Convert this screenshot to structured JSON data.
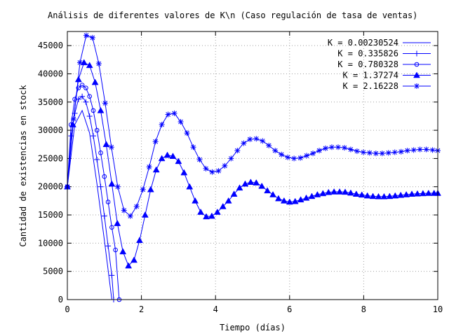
{
  "chart_data": {
    "type": "line",
    "title": "Análisis de diferentes valores de K\\n (Caso regulación de tasa de ventas)",
    "xlabel": "Tiempo (días)",
    "ylabel": "Cantidad de existencias en stock",
    "xlim": [
      0,
      10
    ],
    "ylim": [
      0,
      47500
    ],
    "xticks": [
      0,
      2,
      4,
      6,
      8,
      10
    ],
    "yticks": [
      0,
      5000,
      10000,
      15000,
      20000,
      25000,
      30000,
      35000,
      40000,
      45000
    ],
    "grid": true,
    "legend_position": "top-right",
    "line_color": "#0000ff",
    "series": [
      {
        "name": "K = 0.00230524",
        "marker": "none",
        "x": [
          0,
          0.2,
          0.4,
          0.6,
          0.8,
          1.0,
          1.2
        ],
        "y": [
          20000,
          31000,
          33500,
          29500,
          20500,
          10500,
          0
        ]
      },
      {
        "name": "K = 0.335826",
        "marker": "plus",
        "x": [
          0,
          0.1,
          0.2,
          0.3,
          0.4,
          0.5,
          0.6,
          0.7,
          0.8,
          0.9,
          1.0,
          1.1,
          1.2,
          1.25
        ],
        "y": [
          20000,
          29000,
          33000,
          35500,
          36000,
          35000,
          32500,
          29000,
          24800,
          20000,
          14800,
          9500,
          4300,
          0
        ]
      },
      {
        "name": "K = 0.780328",
        "marker": "circle",
        "x": [
          0,
          0.1,
          0.2,
          0.3,
          0.4,
          0.5,
          0.6,
          0.7,
          0.8,
          0.9,
          1.0,
          1.1,
          1.2,
          1.3,
          1.4
        ],
        "y": [
          20000,
          31000,
          35500,
          37500,
          38000,
          37500,
          36000,
          33500,
          30000,
          26000,
          21800,
          17300,
          12800,
          8800,
          0
        ]
      },
      {
        "name": "K = 1.37274",
        "marker": "triangle",
        "x": [
          0,
          0.15,
          0.3,
          0.45,
          0.6,
          0.75,
          0.9,
          1.05,
          1.2,
          1.35,
          1.5,
          1.65,
          1.8,
          1.95,
          2.1,
          2.25,
          2.4,
          2.55,
          2.7,
          2.85,
          3.0,
          3.15,
          3.3,
          3.45,
          3.6,
          3.75,
          3.9,
          4.05,
          4.2,
          4.35,
          4.5,
          4.65,
          4.8,
          4.95,
          5.1,
          5.25,
          5.4,
          5.55,
          5.7,
          5.85,
          6.0,
          6.15,
          6.3,
          6.45,
          6.6,
          6.75,
          6.9,
          7.05,
          7.2,
          7.35,
          7.5,
          7.65,
          7.8,
          7.95,
          8.1,
          8.25,
          8.4,
          8.55,
          8.7,
          8.85,
          9.0,
          9.15,
          9.3,
          9.45,
          9.6,
          9.75,
          9.9,
          10.0
        ],
        "y": [
          20000,
          31000,
          39000,
          42000,
          41500,
          38500,
          33500,
          27500,
          20500,
          13500,
          8500,
          6000,
          7000,
          10500,
          15000,
          19500,
          23000,
          25000,
          25600,
          25400,
          24500,
          22500,
          20000,
          17500,
          15500,
          14700,
          14800,
          15500,
          16500,
          17500,
          18700,
          19800,
          20500,
          20800,
          20700,
          20100,
          19300,
          18600,
          17900,
          17500,
          17300,
          17400,
          17700,
          18000,
          18300,
          18600,
          18800,
          19000,
          19100,
          19100,
          19050,
          18900,
          18700,
          18550,
          18400,
          18300,
          18250,
          18250,
          18300,
          18400,
          18500,
          18600,
          18700,
          18750,
          18800,
          18850,
          18850,
          18850
        ]
      },
      {
        "name": "K = 2.16228",
        "marker": "star",
        "x": [
          0,
          0.17,
          0.34,
          0.51,
          0.68,
          0.85,
          1.02,
          1.19,
          1.36,
          1.53,
          1.7,
          1.87,
          2.04,
          2.21,
          2.38,
          2.55,
          2.72,
          2.89,
          3.06,
          3.23,
          3.4,
          3.57,
          3.74,
          3.91,
          4.08,
          4.25,
          4.42,
          4.59,
          4.76,
          4.93,
          5.1,
          5.27,
          5.44,
          5.61,
          5.78,
          5.95,
          6.12,
          6.29,
          6.46,
          6.63,
          6.8,
          6.97,
          7.14,
          7.31,
          7.48,
          7.65,
          7.82,
          7.99,
          8.16,
          8.33,
          8.5,
          8.67,
          8.84,
          9.01,
          9.18,
          9.35,
          9.52,
          9.69,
          9.86,
          10.0
        ],
        "y": [
          20000,
          32000,
          42000,
          46800,
          46400,
          41800,
          34800,
          27000,
          20000,
          15800,
          14800,
          16500,
          19500,
          23500,
          28000,
          31000,
          32800,
          33000,
          31500,
          29500,
          27000,
          24800,
          23200,
          22600,
          22800,
          23700,
          25000,
          26400,
          27700,
          28400,
          28500,
          28100,
          27300,
          26400,
          25700,
          25200,
          25000,
          25100,
          25500,
          25900,
          26400,
          26800,
          27000,
          27000,
          26900,
          26600,
          26300,
          26100,
          26000,
          25900,
          25900,
          26000,
          26100,
          26200,
          26400,
          26500,
          26600,
          26600,
          26500,
          26400
        ]
      }
    ]
  }
}
